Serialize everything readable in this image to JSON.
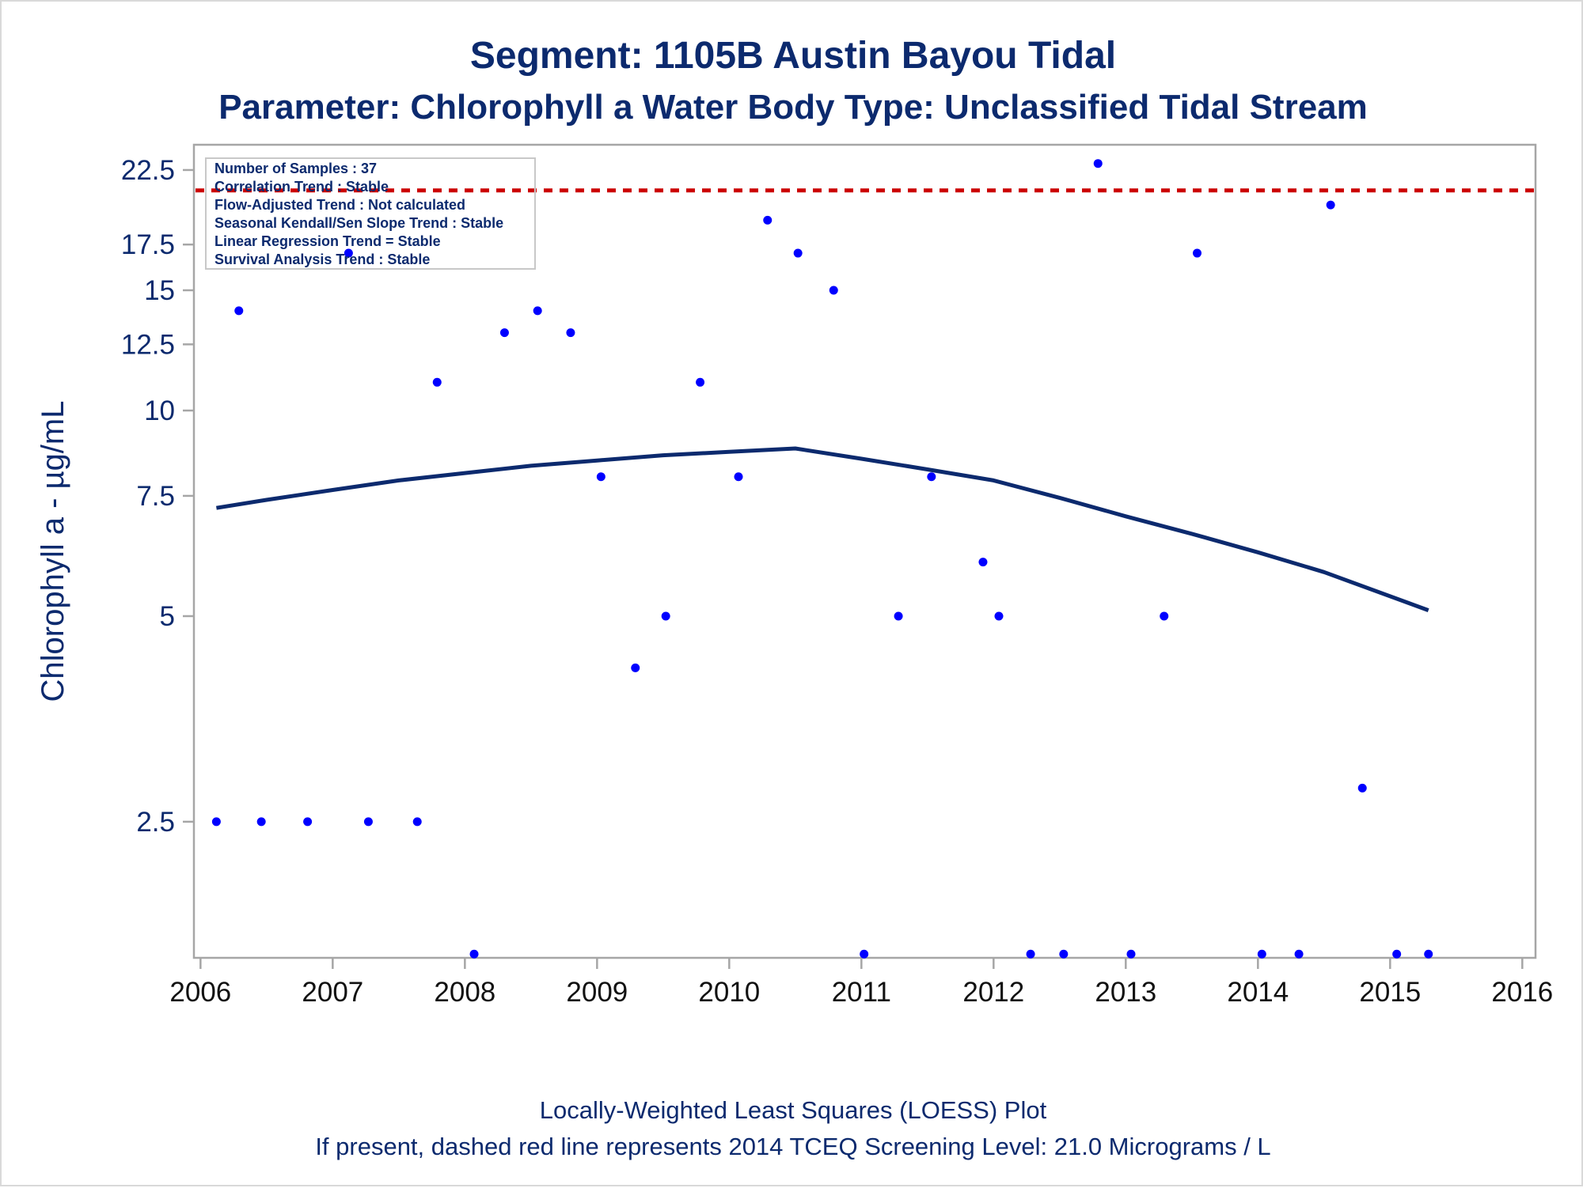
{
  "header": {
    "title": "Segment: 1105B  Austin Bayou Tidal",
    "subtitle": "Parameter: Chlorophyll a   Water Body Type: Unclassified Tidal Stream"
  },
  "info_box": {
    "lines": [
      "Number of Samples : 37",
      "Correlation Trend : Stable",
      "Flow-Adjusted Trend : Not calculated",
      "Seasonal Kendall/Sen Slope Trend : Stable",
      "Linear Regression Trend = Stable",
      "Survival Analysis Trend : Stable"
    ]
  },
  "footer": {
    "line1": "Locally-Weighted Least Squares (LOESS) Plot",
    "line2": "If present, dashed red line represents 2014 TCEQ Screening Level: 21.0 Micrograms / L"
  },
  "colors": {
    "text": "#0c2a6e",
    "points": "#0000ff",
    "loess": "#0c2a6e",
    "screening_line": "#cc0000",
    "axis": "#a6a6a6"
  },
  "chart_data": {
    "type": "scatter",
    "xlabel": "",
    "ylabel": "Chlorophyll a -  µg/mL",
    "y_scale": "log",
    "xlim": [
      2005.95,
      2016.1
    ],
    "ylim": [
      1.58,
      24.5
    ],
    "x_ticks": [
      2006,
      2007,
      2008,
      2009,
      2010,
      2011,
      2012,
      2013,
      2014,
      2015,
      2016
    ],
    "x_tick_labels": [
      "2006",
      "2007",
      "2008",
      "2009",
      "2010",
      "2011",
      "2012",
      "2013",
      "2014",
      "2015",
      "2016"
    ],
    "y_ticks": [
      2.5,
      5,
      7.5,
      10,
      12.5,
      15,
      17.5,
      22.5
    ],
    "y_tick_labels": [
      "2.5",
      "5",
      "7.5",
      "10",
      "12.5",
      "15",
      "17.5",
      "22.5"
    ],
    "screening_level": 21.0,
    "samples": [
      {
        "x": 2006.12,
        "y": 2.5
      },
      {
        "x": 2006.29,
        "y": 14
      },
      {
        "x": 2006.46,
        "y": 2.5
      },
      {
        "x": 2006.81,
        "y": 2.5
      },
      {
        "x": 2007.12,
        "y": 17
      },
      {
        "x": 2007.27,
        "y": 2.5
      },
      {
        "x": 2007.64,
        "y": 2.5
      },
      {
        "x": 2007.79,
        "y": 11
      },
      {
        "x": 2008.07,
        "y": 1.6
      },
      {
        "x": 2008.3,
        "y": 13
      },
      {
        "x": 2008.55,
        "y": 14
      },
      {
        "x": 2008.8,
        "y": 13
      },
      {
        "x": 2009.03,
        "y": 8
      },
      {
        "x": 2009.29,
        "y": 4.2
      },
      {
        "x": 2009.52,
        "y": 5
      },
      {
        "x": 2009.78,
        "y": 11
      },
      {
        "x": 2010.07,
        "y": 8
      },
      {
        "x": 2010.29,
        "y": 19
      },
      {
        "x": 2010.52,
        "y": 17
      },
      {
        "x": 2010.79,
        "y": 15
      },
      {
        "x": 2011.02,
        "y": 1.6
      },
      {
        "x": 2011.28,
        "y": 5
      },
      {
        "x": 2011.53,
        "y": 8
      },
      {
        "x": 2011.92,
        "y": 6
      },
      {
        "x": 2012.04,
        "y": 5
      },
      {
        "x": 2012.28,
        "y": 1.6
      },
      {
        "x": 2012.53,
        "y": 1.6
      },
      {
        "x": 2012.79,
        "y": 23
      },
      {
        "x": 2013.04,
        "y": 1.6
      },
      {
        "x": 2013.29,
        "y": 5
      },
      {
        "x": 2013.54,
        "y": 17
      },
      {
        "x": 2014.03,
        "y": 1.6
      },
      {
        "x": 2014.31,
        "y": 1.6
      },
      {
        "x": 2014.55,
        "y": 20
      },
      {
        "x": 2014.79,
        "y": 2.8
      },
      {
        "x": 2015.05,
        "y": 1.6
      },
      {
        "x": 2015.29,
        "y": 1.6
      }
    ],
    "loess": [
      {
        "x": 2006.12,
        "y": 7.2
      },
      {
        "x": 2006.5,
        "y": 7.4
      },
      {
        "x": 2007.0,
        "y": 7.65
      },
      {
        "x": 2007.5,
        "y": 7.9
      },
      {
        "x": 2008.0,
        "y": 8.1
      },
      {
        "x": 2008.5,
        "y": 8.3
      },
      {
        "x": 2009.0,
        "y": 8.45
      },
      {
        "x": 2009.5,
        "y": 8.6
      },
      {
        "x": 2010.0,
        "y": 8.7
      },
      {
        "x": 2010.5,
        "y": 8.8
      },
      {
        "x": 2011.0,
        "y": 8.5
      },
      {
        "x": 2011.5,
        "y": 8.2
      },
      {
        "x": 2012.0,
        "y": 7.9
      },
      {
        "x": 2012.5,
        "y": 7.45
      },
      {
        "x": 2013.0,
        "y": 7.0
      },
      {
        "x": 2013.5,
        "y": 6.6
      },
      {
        "x": 2014.0,
        "y": 6.2
      },
      {
        "x": 2014.5,
        "y": 5.8
      },
      {
        "x": 2015.29,
        "y": 5.1
      }
    ]
  }
}
